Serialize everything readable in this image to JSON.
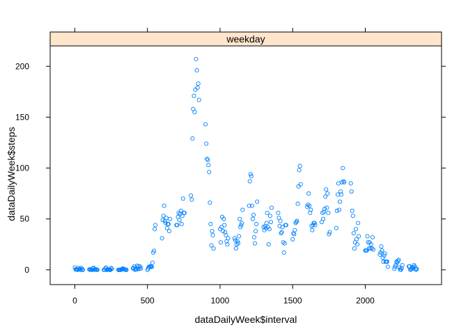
{
  "chart_data": {
    "type": "scatter",
    "panel_title": "weekday",
    "xlabel": "dataDailyWeek$interval",
    "ylabel": "dataDailyWeek$steps",
    "xlim": [
      -170,
      2525
    ],
    "ylim": [
      -14.5,
      220
    ],
    "x_ticks": [
      0,
      500,
      1000,
      1500,
      2000
    ],
    "y_ticks": [
      0,
      50,
      100,
      150,
      200
    ],
    "marker": "open-circle",
    "marker_color": "#0080ff",
    "strip_color": "#ffe5cc",
    "points": [
      [
        0,
        2.3
      ],
      [
        5,
        0.5
      ],
      [
        10,
        0.2
      ],
      [
        15,
        0.2
      ],
      [
        20,
        0.1
      ],
      [
        25,
        1.6
      ],
      [
        30,
        0.6
      ],
      [
        35,
        1.0
      ],
      [
        40,
        0
      ],
      [
        45,
        1.8
      ],
      [
        50,
        0.4
      ],
      [
        55,
        0
      ],
      [
        100,
        0.4
      ],
      [
        105,
        0.1
      ],
      [
        110,
        0.2
      ],
      [
        115,
        0.3
      ],
      [
        120,
        0
      ],
      [
        125,
        1.5
      ],
      [
        130,
        2.0
      ],
      [
        135,
        0.2
      ],
      [
        140,
        0.2
      ],
      [
        145,
        0.3
      ],
      [
        150,
        0.3
      ],
      [
        155,
        0
      ],
      [
        200,
        0
      ],
      [
        205,
        0
      ],
      [
        210,
        1.3
      ],
      [
        215,
        2.3
      ],
      [
        220,
        0
      ],
      [
        225,
        0.2
      ],
      [
        230,
        0.3
      ],
      [
        235,
        0.2
      ],
      [
        240,
        0
      ],
      [
        245,
        0
      ],
      [
        250,
        1.8
      ],
      [
        255,
        1.0
      ],
      [
        300,
        0
      ],
      [
        305,
        0
      ],
      [
        310,
        0
      ],
      [
        315,
        0
      ],
      [
        320,
        0.2
      ],
      [
        325,
        0.8
      ],
      [
        330,
        1.4
      ],
      [
        335,
        0.8
      ],
      [
        340,
        0.7
      ],
      [
        345,
        0.2
      ],
      [
        350,
        0
      ],
      [
        355,
        0
      ],
      [
        400,
        1.4
      ],
      [
        405,
        1.8
      ],
      [
        410,
        3.5
      ],
      [
        415,
        0.1
      ],
      [
        420,
        0.5
      ],
      [
        425,
        0.6
      ],
      [
        430,
        4.1
      ],
      [
        435,
        0.8
      ],
      [
        440,
        3.4
      ],
      [
        445,
        1.0
      ],
      [
        450,
        3.2
      ],
      [
        455,
        1.4
      ],
      [
        500,
        0
      ],
      [
        505,
        1.5
      ],
      [
        510,
        3.0
      ],
      [
        515,
        2.7
      ],
      [
        520,
        3.6
      ],
      [
        525,
        3.0
      ],
      [
        530,
        2.9
      ],
      [
        535,
        7.0
      ],
      [
        540,
        17.0
      ],
      [
        545,
        18.7
      ],
      [
        550,
        40.0
      ],
      [
        555,
        44.0
      ],
      [
        600,
        31.0
      ],
      [
        605,
        49.0
      ],
      [
        610,
        53.0
      ],
      [
        615,
        63.0
      ],
      [
        620,
        48.0
      ],
      [
        625,
        46.0
      ],
      [
        630,
        51.0
      ],
      [
        635,
        41.0
      ],
      [
        640,
        45.0
      ],
      [
        645,
        45.0
      ],
      [
        650,
        38.0
      ],
      [
        655,
        50.0
      ],
      [
        700,
        44.0
      ],
      [
        705,
        44.0
      ],
      [
        710,
        52.0
      ],
      [
        715,
        56.0
      ],
      [
        720,
        49.0
      ],
      [
        725,
        55.0
      ],
      [
        730,
        58.0
      ],
      [
        735,
        45.0
      ],
      [
        740,
        53.0
      ],
      [
        745,
        70.0
      ],
      [
        750,
        56.0
      ],
      [
        755,
        56.0
      ],
      [
        800,
        73.0
      ],
      [
        805,
        69.0
      ],
      [
        810,
        129.0
      ],
      [
        815,
        158.0
      ],
      [
        820,
        171.0
      ],
      [
        825,
        155.0
      ],
      [
        830,
        177.0
      ],
      [
        835,
        207.0
      ],
      [
        840,
        196.0
      ],
      [
        845,
        179.0
      ],
      [
        850,
        183.0
      ],
      [
        855,
        167.0
      ],
      [
        900,
        143.0
      ],
      [
        905,
        124.0
      ],
      [
        910,
        109.0
      ],
      [
        915,
        108.0
      ],
      [
        920,
        103.0
      ],
      [
        925,
        96.0
      ],
      [
        930,
        66.0
      ],
      [
        935,
        45.0
      ],
      [
        940,
        24.0
      ],
      [
        945,
        38.0
      ],
      [
        950,
        34.0
      ],
      [
        955,
        21.0
      ],
      [
        1000,
        40.0
      ],
      [
        1005,
        27.0
      ],
      [
        1010,
        42.0
      ],
      [
        1015,
        52.0
      ],
      [
        1020,
        38.0
      ],
      [
        1025,
        50.0
      ],
      [
        1030,
        44.0
      ],
      [
        1035,
        37.0
      ],
      [
        1040,
        34.0
      ],
      [
        1045,
        28.0
      ],
      [
        1050,
        25.0
      ],
      [
        1055,
        31.0
      ],
      [
        1100,
        31.0
      ],
      [
        1105,
        29.0
      ],
      [
        1110,
        21.0
      ],
      [
        1115,
        25.0
      ],
      [
        1120,
        28.0
      ],
      [
        1125,
        26.0
      ],
      [
        1130,
        33.0
      ],
      [
        1135,
        50.0
      ],
      [
        1140,
        42.0
      ],
      [
        1145,
        44.0
      ],
      [
        1150,
        46.0
      ],
      [
        1155,
        59.0
      ],
      [
        1200,
        63.0
      ],
      [
        1205,
        87.0
      ],
      [
        1210,
        94.0
      ],
      [
        1215,
        92.0
      ],
      [
        1220,
        63.0
      ],
      [
        1225,
        50.0
      ],
      [
        1230,
        54.0
      ],
      [
        1235,
        32.0
      ],
      [
        1240,
        26.0
      ],
      [
        1245,
        38.0
      ],
      [
        1250,
        45.0
      ],
      [
        1255,
        67.0
      ],
      [
        1300,
        42.0
      ],
      [
        1305,
        39.0
      ],
      [
        1310,
        43.0
      ],
      [
        1315,
        41.0
      ],
      [
        1320,
        46.0
      ],
      [
        1325,
        56.0
      ],
      [
        1330,
        42.0
      ],
      [
        1335,
        25.0
      ],
      [
        1340,
        40.0
      ],
      [
        1345,
        53.0
      ],
      [
        1350,
        47.0
      ],
      [
        1355,
        61.0
      ],
      [
        1400,
        56.0
      ],
      [
        1405,
        51.0
      ],
      [
        1410,
        43.0
      ],
      [
        1415,
        48.0
      ],
      [
        1420,
        36.0
      ],
      [
        1425,
        37.0
      ],
      [
        1430,
        42.0
      ],
      [
        1435,
        27.0
      ],
      [
        1440,
        17.0
      ],
      [
        1445,
        26.0
      ],
      [
        1450,
        44.0
      ],
      [
        1455,
        44.0
      ],
      [
        1500,
        30.0
      ],
      [
        1505,
        36.0
      ],
      [
        1510,
        35.0
      ],
      [
        1515,
        39.0
      ],
      [
        1520,
        46.0
      ],
      [
        1525,
        47.0
      ],
      [
        1530,
        48.0
      ],
      [
        1535,
        65.0
      ],
      [
        1540,
        82.0
      ],
      [
        1545,
        98.0
      ],
      [
        1550,
        102.0
      ],
      [
        1555,
        84.0
      ],
      [
        1600,
        62.0
      ],
      [
        1605,
        64.0
      ],
      [
        1610,
        75.0
      ],
      [
        1615,
        63.0
      ],
      [
        1620,
        56.0
      ],
      [
        1625,
        59.0
      ],
      [
        1630,
        43.0
      ],
      [
        1635,
        39.0
      ],
      [
        1640,
        44.0
      ],
      [
        1645,
        46.0
      ],
      [
        1650,
        46.0
      ],
      [
        1655,
        44.0
      ],
      [
        1700,
        47.0
      ],
      [
        1705,
        56.0
      ],
      [
        1710,
        50.0
      ],
      [
        1715,
        57.0
      ],
      [
        1720,
        60.0
      ],
      [
        1725,
        72.0
      ],
      [
        1730,
        79.0
      ],
      [
        1735,
        61.0
      ],
      [
        1740,
        75.0
      ],
      [
        1745,
        56.0
      ],
      [
        1750,
        35.0
      ],
      [
        1755,
        37.0
      ],
      [
        1800,
        41.0
      ],
      [
        1805,
        58.0
      ],
      [
        1810,
        74.0
      ],
      [
        1815,
        85.0
      ],
      [
        1820,
        59.0
      ],
      [
        1825,
        67.0
      ],
      [
        1830,
        77.0
      ],
      [
        1835,
        74.0
      ],
      [
        1840,
        86.0
      ],
      [
        1845,
        100.0
      ],
      [
        1850,
        87.0
      ],
      [
        1855,
        86.0
      ],
      [
        1900,
        85.0
      ],
      [
        1905,
        77.0
      ],
      [
        1910,
        58.0
      ],
      [
        1915,
        53.0
      ],
      [
        1920,
        36.0
      ],
      [
        1925,
        21.0
      ],
      [
        1930,
        27.0
      ],
      [
        1935,
        40.0
      ],
      [
        1940,
        30.0
      ],
      [
        1945,
        25.0
      ],
      [
        1950,
        46.0
      ],
      [
        1955,
        33.0
      ],
      [
        2000,
        19.0
      ],
      [
        2005,
        19.0
      ],
      [
        2010,
        19.0
      ],
      [
        2015,
        33.0
      ],
      [
        2020,
        27.0
      ],
      [
        2025,
        21.0
      ],
      [
        2030,
        27.0
      ],
      [
        2035,
        21.0
      ],
      [
        2040,
        25.0
      ],
      [
        2045,
        21.0
      ],
      [
        2050,
        32.0
      ],
      [
        2055,
        20.0
      ],
      [
        2100,
        15.0
      ],
      [
        2105,
        17.0
      ],
      [
        2110,
        23.0
      ],
      [
        2115,
        19.0
      ],
      [
        2120,
        12.0
      ],
      [
        2125,
        8.0
      ],
      [
        2130,
        14.0
      ],
      [
        2135,
        16.0
      ],
      [
        2140,
        8.0
      ],
      [
        2145,
        8.0
      ],
      [
        2150,
        8.0
      ],
      [
        2155,
        3.0
      ],
      [
        2200,
        1.0
      ],
      [
        2205,
        3.0
      ],
      [
        2210,
        4.8
      ],
      [
        2215,
        8.0
      ],
      [
        2220,
        7.0
      ],
      [
        2225,
        8.7
      ],
      [
        2230,
        9.8
      ],
      [
        2235,
        2.2
      ],
      [
        2240,
        0.3
      ],
      [
        2245,
        0.1
      ],
      [
        2250,
        1.6
      ],
      [
        2255,
        4.6
      ],
      [
        2300,
        3.3
      ],
      [
        2305,
        3.5
      ],
      [
        2310,
        0
      ],
      [
        2315,
        0.8
      ],
      [
        2320,
        1.0
      ],
      [
        2325,
        1.6
      ],
      [
        2330,
        2.6
      ],
      [
        2335,
        4.7
      ],
      [
        2340,
        3.3
      ],
      [
        2345,
        0.6
      ],
      [
        2350,
        0.2
      ],
      [
        2355,
        1.1
      ]
    ]
  }
}
